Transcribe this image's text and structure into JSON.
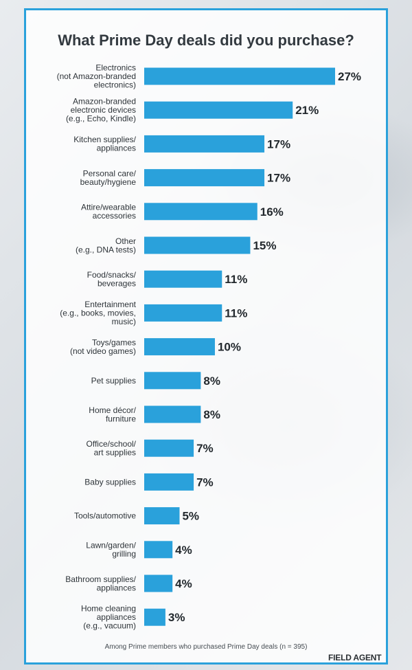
{
  "chart_data": {
    "type": "bar",
    "orientation": "horizontal",
    "title": "What Prime Day deals did you purchase?",
    "categories": [
      [
        "Electronics",
        "(not Amazon-branded",
        "electronics)"
      ],
      [
        "Amazon-branded",
        "electronic devices",
        "(e.g., Echo, Kindle)"
      ],
      [
        "Kitchen supplies/",
        "appliances"
      ],
      [
        "Personal care/",
        "beauty/hygiene"
      ],
      [
        "Attire/wearable",
        "accessories"
      ],
      [
        "Other",
        "(e.g., DNA tests)"
      ],
      [
        "Food/snacks/",
        "beverages"
      ],
      [
        "Entertainment",
        "(e.g., books, movies,",
        "music)"
      ],
      [
        "Toys/games",
        "(not video games)"
      ],
      [
        "Pet supplies"
      ],
      [
        "Home décor/",
        "furniture"
      ],
      [
        "Office/school/",
        "art supplies"
      ],
      [
        "Baby supplies"
      ],
      [
        "Tools/automotive"
      ],
      [
        "Lawn/garden/",
        "grilling"
      ],
      [
        "Bathroom supplies/",
        "appliances"
      ],
      [
        "Home cleaning",
        "appliances",
        "(e.g., vacuum)"
      ]
    ],
    "values": [
      27,
      21,
      17,
      17,
      16,
      15,
      11,
      11,
      10,
      8,
      8,
      7,
      7,
      5,
      4,
      4,
      3
    ],
    "value_labels": [
      "27%",
      "21%",
      "17%",
      "17%",
      "16%",
      "15%",
      "11%",
      "11%",
      "10%",
      "8%",
      "8%",
      "7%",
      "7%",
      "5%",
      "4%",
      "4%",
      "3%"
    ],
    "xlim": [
      0,
      27
    ],
    "unit": "%",
    "bar_color": "#2aa1db",
    "grid": false,
    "legend": "none"
  },
  "footnote": "Among Prime members who purchased Prime Day deals (n = 395)",
  "brand": "FIELD AGENT"
}
